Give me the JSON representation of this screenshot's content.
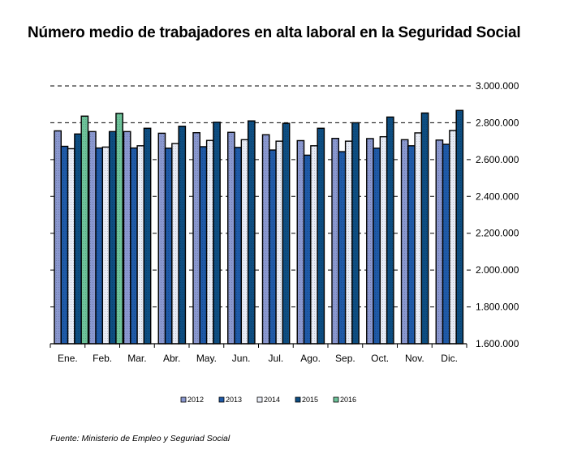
{
  "chart_data": {
    "type": "bar",
    "title": "Número medio de trabajadores en alta laboral en la Seguridad Social",
    "xlabel": "",
    "ylabel": "",
    "ylim": [
      1600000,
      3000000
    ],
    "yticks": [
      1600000,
      1800000,
      2000000,
      2200000,
      2400000,
      2600000,
      2800000,
      3000000
    ],
    "ytick_labels": [
      "1.600.000",
      "1.800.000",
      "2.000.000",
      "2.200.000",
      "2.400.000",
      "2.600.000",
      "2.800.000",
      "3.000.000"
    ],
    "grid": "horizontal dashed",
    "legend_position": "bottom",
    "categories": [
      "Ene.",
      "Feb.",
      "Mar.",
      "Abr.",
      "May.",
      "Jun.",
      "Jul.",
      "Ago.",
      "Sep.",
      "Oct.",
      "Nov.",
      "Dic."
    ],
    "series": [
      {
        "name": "2012",
        "color": "#8a98d0",
        "values": [
          2756000,
          2752000,
          2752000,
          2743000,
          2746000,
          2748000,
          2735000,
          2703000,
          2715000,
          2714000,
          2708000,
          2706000
        ]
      },
      {
        "name": "2013",
        "color": "#1f5aa8",
        "values": [
          2672000,
          2663000,
          2663000,
          2662000,
          2670000,
          2666000,
          2652000,
          2624000,
          2643000,
          2662000,
          2675000,
          2683000
        ]
      },
      {
        "name": "2014",
        "color": "#e8ecf6",
        "values": [
          2659000,
          2668000,
          2675000,
          2687000,
          2704000,
          2708000,
          2700000,
          2675000,
          2700000,
          2724000,
          2745000,
          2758000
        ]
      },
      {
        "name": "2015",
        "color": "#0e4e82",
        "values": [
          2739000,
          2752000,
          2770000,
          2781000,
          2803000,
          2810000,
          2797000,
          2770000,
          2800000,
          2831000,
          2853000,
          2867000
        ]
      },
      {
        "name": "2016",
        "color": "#6dc39a",
        "values": [
          2836000,
          2851000,
          null,
          null,
          null,
          null,
          null,
          null,
          null,
          null,
          null,
          null
        ]
      }
    ]
  },
  "source": "Fuente: Ministerio de Empleo y Seguriad Social"
}
